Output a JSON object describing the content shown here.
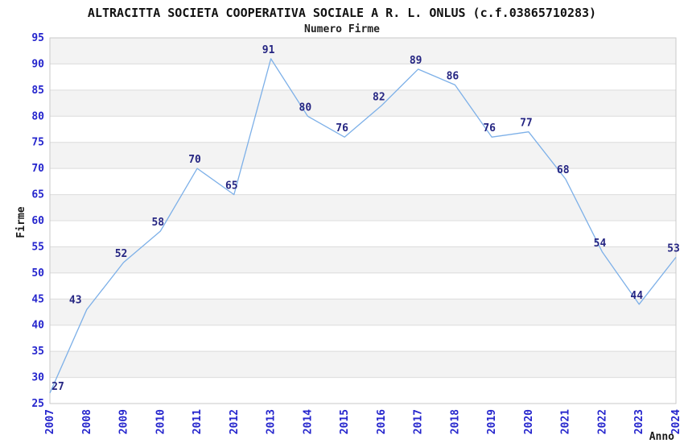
{
  "title": "ALTRACITTA SOCIETA COOPERATIVA SOCIALE A R. L. ONLUS (c.f.03865710283)",
  "subtitle": "Numero Firme",
  "chart_data": {
    "type": "line",
    "title": "ALTRACITTA SOCIETA COOPERATIVA SOCIALE A R. L. ONLUS (c.f.03865710283)",
    "subtitle": "Numero Firme",
    "xlabel": "Anno",
    "ylabel": "Firme",
    "x": [
      2007,
      2008,
      2009,
      2010,
      2011,
      2012,
      2013,
      2014,
      2015,
      2016,
      2017,
      2018,
      2019,
      2020,
      2021,
      2022,
      2023,
      2024
    ],
    "series": [
      {
        "name": "Numero Firme",
        "values": [
          27,
          43,
          52,
          58,
          70,
          65,
          91,
          80,
          76,
          82,
          89,
          86,
          76,
          77,
          68,
          54,
          44,
          53
        ]
      }
    ],
    "ylim": [
      25,
      95
    ],
    "ytick_step": 5,
    "grid": "horizontal-only",
    "bands": "alternating-gray-starting-at-top",
    "legend": "none",
    "data_labels": "shown-above-points",
    "colors": {
      "line": "#7db0e8",
      "data_label": "#252582",
      "tick_label": "#2525cd",
      "band": "#f3f3f3",
      "gridline": "#dcdcdc",
      "plot_border": "#c9c9c9",
      "axis_title": "#1a1a1a",
      "background": "#ffffff"
    }
  }
}
